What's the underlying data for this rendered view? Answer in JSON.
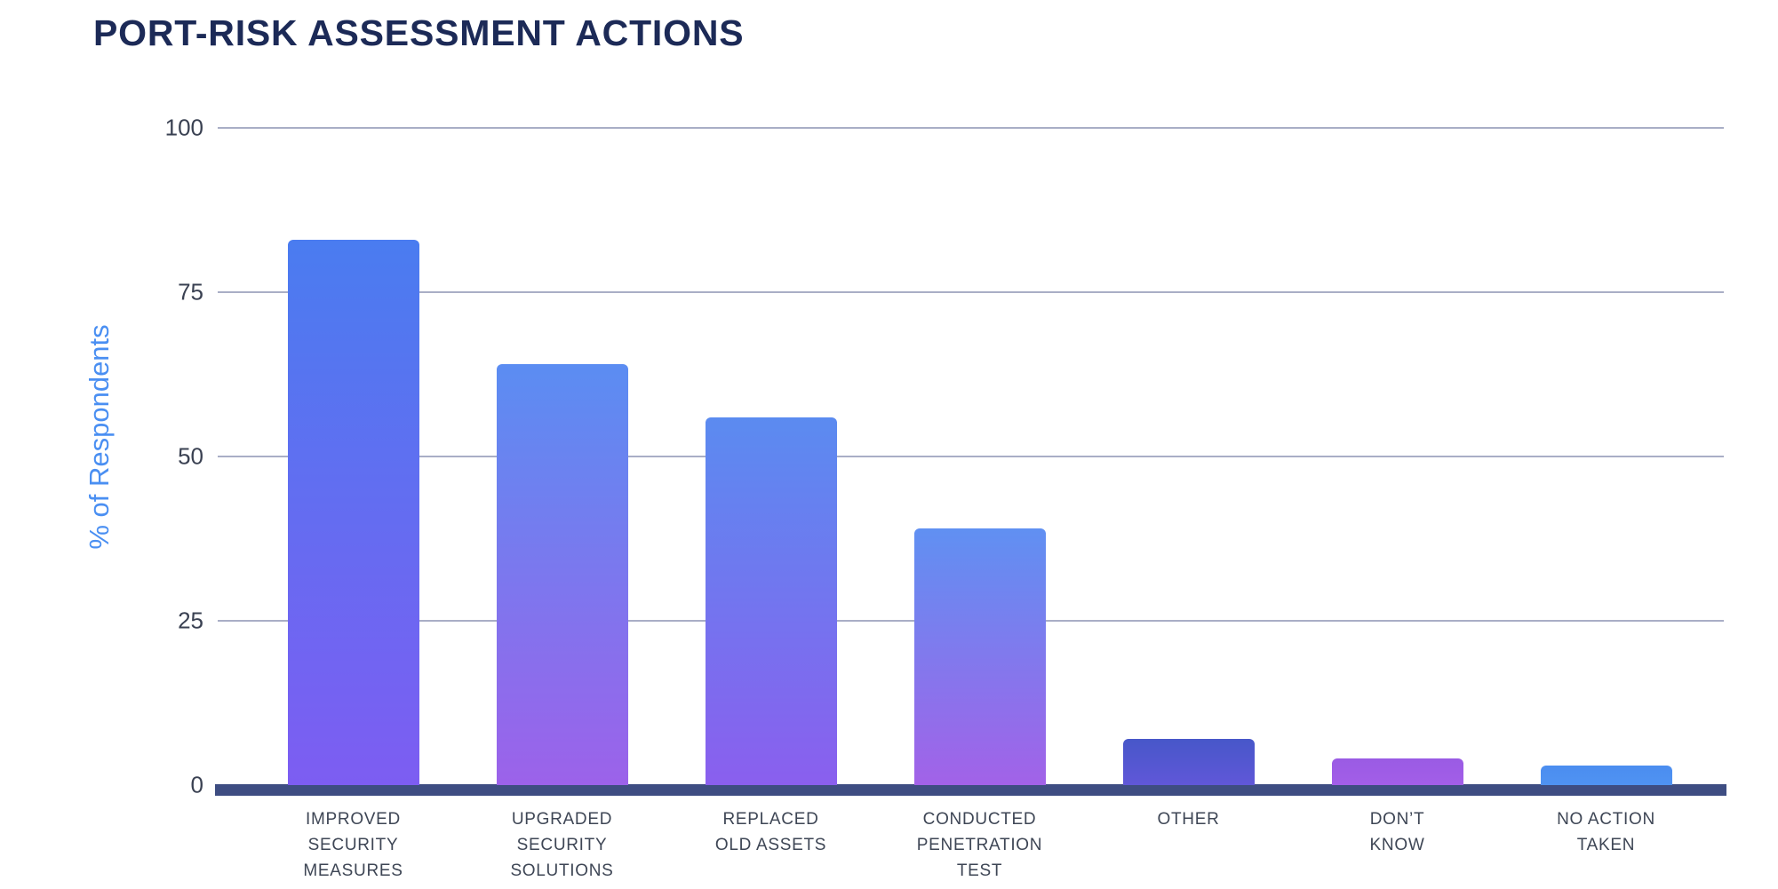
{
  "title": "PORT-RISK ASSESSMENT ACTIONS",
  "chart_data": {
    "type": "bar",
    "title": "PORT-RISK ASSESSMENT ACTIONS",
    "xlabel": "",
    "ylabel": "% of Respondents",
    "ylim": [
      0,
      100
    ],
    "yticks": [
      0,
      25,
      50,
      75,
      100
    ],
    "grid": true,
    "legend": false,
    "categories": [
      "IMPROVED SECURITY MEASURES",
      "UPGRADED SECURITY SOLUTIONS",
      "REPLACED OLD ASSETS",
      "CONDUCTED PENETRATION TEST",
      "OTHER",
      "DON’T KNOW",
      "NO ACTION TAKEN"
    ],
    "category_lines": [
      [
        "IMPROVED",
        "SECURITY",
        "MEASURES"
      ],
      [
        "UPGRADED",
        "SECURITY",
        "SOLUTIONS"
      ],
      [
        "REPLACED",
        "OLD ASSETS"
      ],
      [
        "CONDUCTED",
        "PENETRATION",
        "TEST"
      ],
      [
        "OTHER"
      ],
      [
        "DON’T",
        "KNOW"
      ],
      [
        "NO ACTION",
        "TAKEN"
      ]
    ],
    "values": [
      83,
      64,
      56,
      39,
      7,
      4,
      3
    ],
    "bar_colors": [
      {
        "top": "#4a7cf0",
        "bottom": "#7d5df2"
      },
      {
        "top": "#5b8df2",
        "bottom": "#9c62ea"
      },
      {
        "top": "#5b8bf0",
        "bottom": "#8a5fee"
      },
      {
        "top": "#6090f2",
        "bottom": "#a262e8"
      },
      {
        "top": "#4757c9",
        "bottom": "#6057d8"
      },
      {
        "top": "#9a5be4",
        "bottom": "#a35ee8"
      },
      {
        "top": "#4b8df0",
        "bottom": "#4f93f2"
      }
    ]
  },
  "colors": {
    "background": "#ffffff",
    "title": "#1c2a57",
    "y_axis_label": "#4a8ff2",
    "tick": "#3a4152",
    "gridline": "#a9aec6",
    "baseline": "#3e4d82",
    "category_label": "#3e4655"
  }
}
